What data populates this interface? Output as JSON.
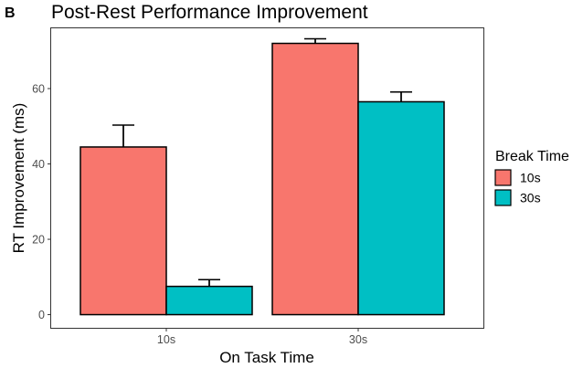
{
  "panel_label": "B",
  "chart_data": {
    "type": "bar",
    "title": "Post-Rest Performance Improvement",
    "xlabel": "On Task Time",
    "ylabel": "RT Improvement (ms)",
    "categories": [
      "10s",
      "30s"
    ],
    "series": [
      {
        "name": "10s",
        "color": "#F8766D",
        "values": [
          44.5,
          72.0
        ],
        "errors": [
          5.8,
          1.2
        ]
      },
      {
        "name": "30s",
        "color": "#00BFC4",
        "values": [
          7.5,
          56.5
        ],
        "errors": [
          1.8,
          2.6
        ]
      }
    ],
    "ylim": [
      -3.5,
      76
    ],
    "yticks": [
      0,
      20,
      40,
      60
    ],
    "grid": false,
    "legend": {
      "title": "Break Time",
      "placement": "right"
    }
  }
}
